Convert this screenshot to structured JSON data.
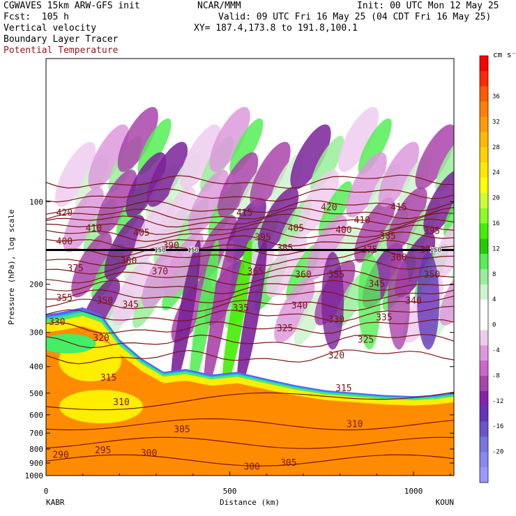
{
  "header": {
    "model": "CGWAVES 15km ARW-GFS init",
    "org": "NCAR/MMM",
    "init": "Init: 00 UTC Mon 12 May 25",
    "fcst": "Fcst:  105 h",
    "valid": "Valid: 09 UTC Fri 16 May 25 (04 CDT Fri 16 May 25)",
    "field1": "Vertical velocity",
    "xy": "XY= 187.4,173.8 to 191.8,100.1",
    "field2": "Boundary Layer Tracer",
    "field3": "Potential Temperature"
  },
  "colors": {
    "theta_contour": "#7a1414",
    "tropopause_line": "#000000",
    "header_red": "#8b1a1a"
  },
  "chart_data": {
    "type": "heatmap",
    "title": "Vertical velocity",
    "xlabel": "Distance (km)",
    "ylabel": "Pressure (hPa), log scale",
    "x_ticks": [
      0,
      500,
      1000
    ],
    "xlim": [
      0,
      1110
    ],
    "x_end_labels": {
      "left": "KABR",
      "right": "KOUN"
    },
    "y_scale": "log",
    "y_ticks": [
      100,
      200,
      300,
      400,
      500,
      600,
      700,
      800,
      900,
      1000
    ],
    "ylim": [
      1000,
      30
    ],
    "colorbar": {
      "unit": "cm s⁻¹",
      "labels": [
        36,
        32,
        28,
        24,
        20,
        16,
        12,
        8,
        4,
        0,
        -4,
        -8,
        -12,
        -16,
        -20
      ],
      "colors": [
        "#ff0000",
        "#ff2a00",
        "#ff5a00",
        "#ff7f00",
        "#ff9a00",
        "#ffb800",
        "#ffd000",
        "#ffe800",
        "#ffff00",
        "#ccff33",
        "#88ff22",
        "#44ee00",
        "#22cc00",
        "#55ee55",
        "#99ee99",
        "#ccf5cc",
        "#ffffff",
        "#ffffff",
        "#eeccee",
        "#dd99dd",
        "#cc66cc",
        "#aa44aa",
        "#8822aa",
        "#6633bb",
        "#6a55cc",
        "#7777dd",
        "#8888ee",
        "#9999ff"
      ]
    },
    "theta_labels": [
      {
        "x": 50,
        "p": 110,
        "v": "420"
      },
      {
        "x": 130,
        "p": 125,
        "v": "410"
      },
      {
        "x": 50,
        "p": 140,
        "v": "400"
      },
      {
        "x": 260,
        "p": 130,
        "v": "405"
      },
      {
        "x": 340,
        "p": 145,
        "v": "390"
      },
      {
        "x": 80,
        "p": 175,
        "v": "375"
      },
      {
        "x": 225,
        "p": 165,
        "v": "380"
      },
      {
        "x": 310,
        "p": 180,
        "v": "370"
      },
      {
        "x": 50,
        "p": 225,
        "v": "355"
      },
      {
        "x": 160,
        "p": 230,
        "v": "350"
      },
      {
        "x": 230,
        "p": 238,
        "v": "345"
      },
      {
        "x": 540,
        "p": 110,
        "v": "415"
      },
      {
        "x": 590,
        "p": 135,
        "v": "395"
      },
      {
        "x": 680,
        "p": 125,
        "v": "405"
      },
      {
        "x": 650,
        "p": 148,
        "v": "385"
      },
      {
        "x": 570,
        "p": 180,
        "v": "365"
      },
      {
        "x": 700,
        "p": 185,
        "v": "360"
      },
      {
        "x": 790,
        "p": 185,
        "v": "355"
      },
      {
        "x": 530,
        "p": 245,
        "v": "335"
      },
      {
        "x": 690,
        "p": 240,
        "v": "340"
      },
      {
        "x": 650,
        "p": 290,
        "v": "325"
      },
      {
        "x": 790,
        "p": 270,
        "v": "330"
      },
      {
        "x": 770,
        "p": 105,
        "v": "420"
      },
      {
        "x": 860,
        "p": 117,
        "v": "410"
      },
      {
        "x": 810,
        "p": 127,
        "v": "400"
      },
      {
        "x": 960,
        "p": 105,
        "v": "415"
      },
      {
        "x": 930,
        "p": 134,
        "v": "385"
      },
      {
        "x": 1050,
        "p": 128,
        "v": "395"
      },
      {
        "x": 880,
        "p": 150,
        "v": "375"
      },
      {
        "x": 1040,
        "p": 150,
        "v": "370"
      },
      {
        "x": 960,
        "p": 160,
        "v": "360"
      },
      {
        "x": 1050,
        "p": 185,
        "v": "350"
      },
      {
        "x": 900,
        "p": 200,
        "v": "345"
      },
      {
        "x": 1000,
        "p": 230,
        "v": "340"
      },
      {
        "x": 920,
        "p": 265,
        "v": "335"
      },
      {
        "x": 870,
        "p": 320,
        "v": "325"
      },
      {
        "x": 790,
        "p": 365,
        "v": "320"
      },
      {
        "x": 30,
        "p": 275,
        "v": "330"
      },
      {
        "x": 150,
        "p": 315,
        "v": "320"
      },
      {
        "x": 170,
        "p": 440,
        "v": "315"
      },
      {
        "x": 205,
        "p": 540,
        "v": "310"
      },
      {
        "x": 370,
        "p": 680,
        "v": "305"
      },
      {
        "x": 810,
        "p": 480,
        "v": "315"
      },
      {
        "x": 840,
        "p": 650,
        "v": "310"
      },
      {
        "x": 40,
        "p": 840,
        "v": "290"
      },
      {
        "x": 155,
        "p": 810,
        "v": "295"
      },
      {
        "x": 280,
        "p": 830,
        "v": "300"
      },
      {
        "x": 560,
        "p": 930,
        "v": "300"
      },
      {
        "x": 660,
        "p": 900,
        "v": "305"
      }
    ],
    "tropopause_labels": [
      {
        "x": 310,
        "v": "150"
      },
      {
        "x": 400,
        "v": "150"
      },
      {
        "x": 1060,
        "v": "150"
      }
    ],
    "tropopause_pressure": 150
  }
}
